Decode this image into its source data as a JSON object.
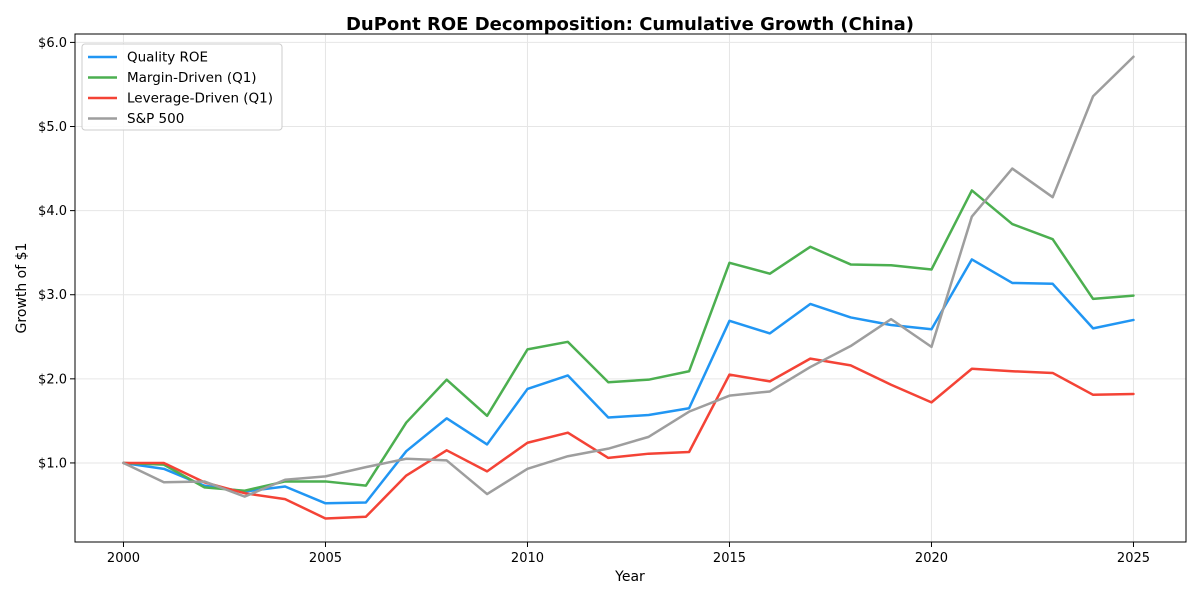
{
  "chart_data": {
    "type": "line",
    "title": "DuPont ROE Decomposition: Cumulative Growth (China)",
    "xlabel": "Year",
    "ylabel": "Growth of $1",
    "x": [
      2000,
      2001,
      2002,
      2003,
      2004,
      2005,
      2006,
      2007,
      2008,
      2009,
      2010,
      2011,
      2012,
      2013,
      2014,
      2015,
      2016,
      2017,
      2018,
      2019,
      2020,
      2021,
      2022,
      2023,
      2024,
      2025
    ],
    "xlim": [
      1998.8,
      2026.3
    ],
    "ylim": [
      0.06,
      6.1
    ],
    "xticks": [
      2000,
      2005,
      2010,
      2015,
      2020,
      2025
    ],
    "xtick_labels": [
      "2000",
      "2005",
      "2010",
      "2015",
      "2020",
      "2025"
    ],
    "yticks": [
      1,
      2,
      3,
      4,
      5,
      6
    ],
    "ytick_labels": [
      "$1.0",
      "$2.0",
      "$3.0",
      "$4.0",
      "$5.0",
      "$6.0"
    ],
    "grid": true,
    "legend_position": "top-left",
    "series": [
      {
        "name": "Quality ROE",
        "color": "#2196F3",
        "values": [
          1.0,
          0.93,
          0.73,
          0.66,
          0.72,
          0.52,
          0.53,
          1.14,
          1.53,
          1.22,
          1.88,
          2.04,
          1.54,
          1.57,
          1.65,
          2.69,
          2.54,
          2.89,
          2.73,
          2.64,
          2.59,
          3.42,
          3.14,
          3.13,
          2.6,
          2.7
        ]
      },
      {
        "name": "Margin-Driven (Q1)",
        "color": "#4CAF50",
        "values": [
          1.0,
          0.98,
          0.71,
          0.67,
          0.78,
          0.78,
          0.73,
          1.48,
          1.99,
          1.56,
          2.35,
          2.44,
          1.96,
          1.99,
          2.09,
          3.38,
          3.25,
          3.57,
          3.36,
          3.35,
          3.3,
          4.24,
          3.84,
          3.66,
          2.95,
          2.99
        ]
      },
      {
        "name": "Leverage-Driven (Q1)",
        "color": "#F44336",
        "values": [
          1.0,
          1.0,
          0.77,
          0.64,
          0.57,
          0.34,
          0.36,
          0.85,
          1.15,
          0.9,
          1.24,
          1.36,
          1.06,
          1.11,
          1.13,
          2.05,
          1.97,
          2.24,
          2.16,
          1.93,
          1.72,
          2.12,
          2.09,
          2.07,
          1.81,
          1.82
        ]
      },
      {
        "name": "S&P 500",
        "color": "#9E9E9E",
        "values": [
          1.0,
          0.77,
          0.78,
          0.6,
          0.8,
          0.84,
          0.95,
          1.05,
          1.03,
          0.63,
          0.93,
          1.08,
          1.17,
          1.31,
          1.61,
          1.8,
          1.85,
          2.14,
          2.39,
          2.71,
          2.38,
          3.93,
          4.5,
          4.16,
          5.36,
          5.83
        ]
      }
    ]
  }
}
